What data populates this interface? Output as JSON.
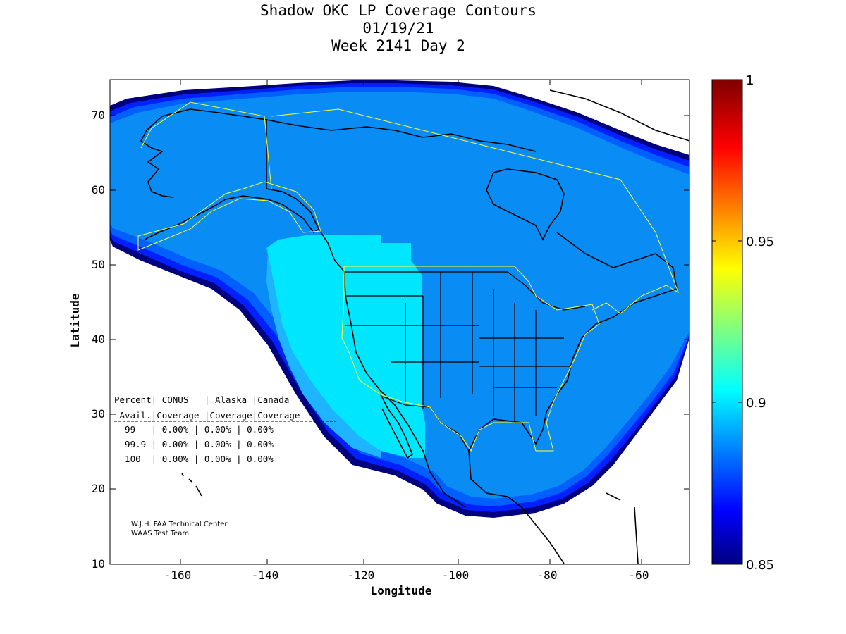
{
  "title": {
    "line1": "Shadow OKC LP Coverage Contours",
    "line2": "01/19/21",
    "line3": "Week 2141 Day 2"
  },
  "axes": {
    "xlabel": "Longitude",
    "ylabel": "Latitude",
    "x_ticks": [
      "-160",
      "-140",
      "-120",
      "-100",
      "-80",
      "-60"
    ],
    "y_ticks": [
      "10",
      "20",
      "30",
      "40",
      "50",
      "60",
      "70"
    ],
    "xlim": [
      -175,
      -50
    ],
    "ylim": [
      10,
      75
    ]
  },
  "colorbar": {
    "labels": [
      "1",
      "0.95",
      "0.9",
      "0.85"
    ],
    "range": [
      0.85,
      1.0
    ],
    "colormap": "jet"
  },
  "coverage_table": {
    "header1": "Percent| CONUS   | Alaska |Canada",
    "header2": " Avail.|Coverage |Coverage|Coverage",
    "rows": [
      "  99   | 0.00% | 0.00% | 0.00%",
      "  99.9 | 0.00% | 0.00% | 0.00%",
      "  100  | 0.00% | 0.00% | 0.00%"
    ]
  },
  "credit": {
    "line1": "W.J.H. FAA Technical Center",
    "line2": "WAAS Test Team"
  },
  "colors": {
    "outer_dark": "#00007f",
    "blue": "#0033ff",
    "mid_blue": "#0070ff",
    "main_blue": "#0a8cf5",
    "light_blue": "#1fa8ff",
    "cyan": "#00d8ff",
    "light_cyan": "#00e6ff"
  }
}
